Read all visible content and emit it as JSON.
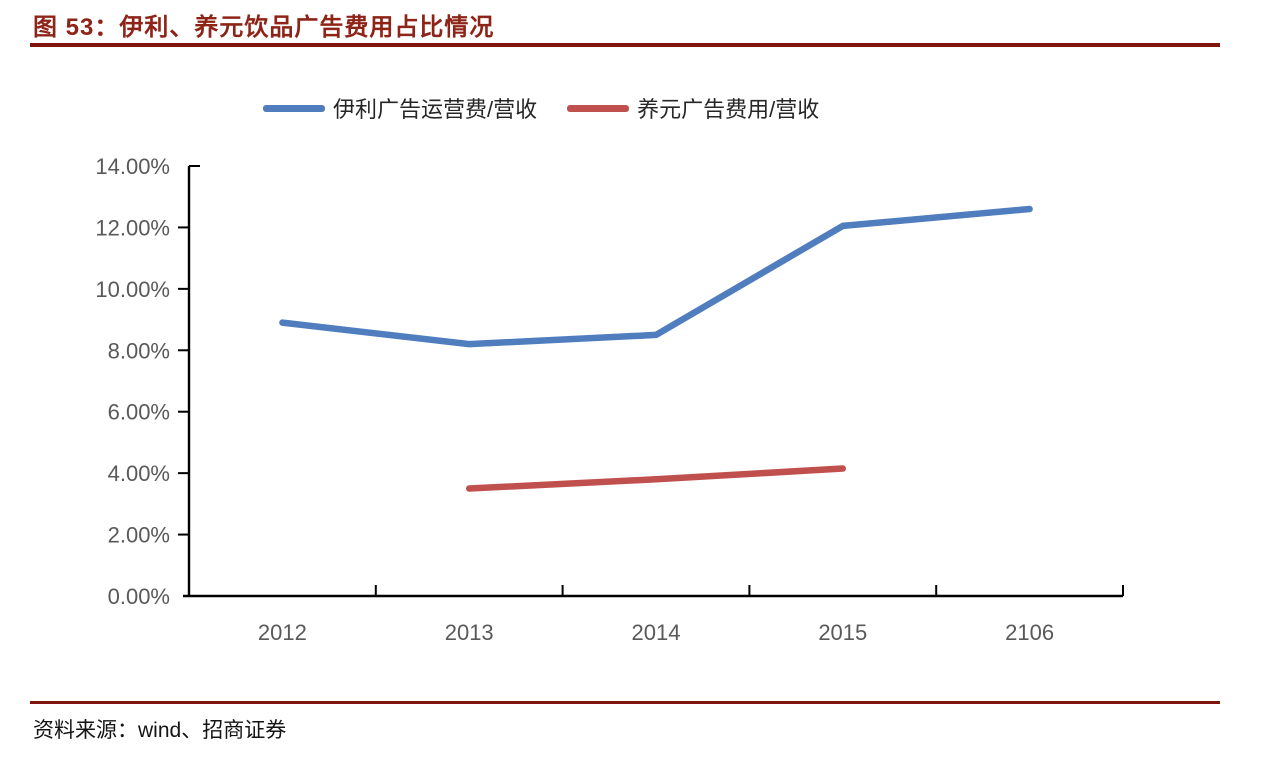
{
  "header": {
    "title": "图 53：伊利、养元饮品广告费用占比情况"
  },
  "footer": {
    "source": "资料来源：wind、招商证券"
  },
  "colors": {
    "title_red": "#8e2417",
    "rule_red": "#7f150e",
    "axis_line": "#000000",
    "axis_label_gray": "#595959",
    "series_blue": "#4F7DBE",
    "series_red": "#C0504D"
  },
  "chart_data": {
    "type": "line",
    "title": "伊利、养元饮品广告费用占比情况",
    "xlabel": "",
    "ylabel": "",
    "categories": [
      "2012",
      "2013",
      "2014",
      "2015",
      "2106"
    ],
    "series": [
      {
        "name": "伊利广告运营费/营收",
        "color": "#4F7DBE",
        "values": [
          8.9,
          8.2,
          8.5,
          12.05,
          12.6
        ]
      },
      {
        "name": "养元广告费用/营收",
        "color": "#C0504D",
        "values": [
          null,
          3.5,
          3.8,
          4.15,
          null
        ]
      }
    ],
    "ylim": [
      0,
      14
    ],
    "yticks": [
      {
        "value": 14,
        "label": "14.00%"
      },
      {
        "value": 12,
        "label": "12.00%"
      },
      {
        "value": 10,
        "label": "10.00%"
      },
      {
        "value": 8,
        "label": "8.00%"
      },
      {
        "value": 6,
        "label": "6.00%"
      },
      {
        "value": 4,
        "label": "4.00%"
      },
      {
        "value": 2,
        "label": "2.00%"
      },
      {
        "value": 0,
        "label": "0.00%"
      }
    ],
    "grid": false,
    "legend_position": "top"
  }
}
